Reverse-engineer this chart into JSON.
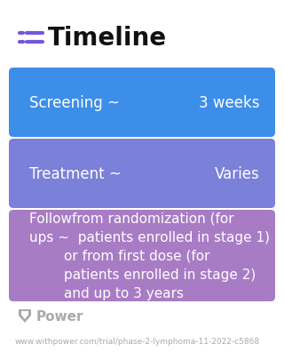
{
  "title": "Timeline",
  "background_color": "#ffffff",
  "title_color": "#111111",
  "title_fontsize": 20,
  "icon_color": "#7755DD",
  "rows": [
    {
      "left_text": "Screening ~",
      "right_text": "3 weeks",
      "bg_color": "#3D8EE8",
      "text_color": "#ffffff",
      "fontsize": 12
    },
    {
      "left_text": "Treatment ~",
      "right_text": "Varies",
      "bg_color": "#7B80D8",
      "text_color": "#ffffff",
      "fontsize": 12
    },
    {
      "left_text": "Followfrom randomization (for\nups ~  patients enrolled in stage 1)\n        or from first dose (for\n        patients enrolled in stage 2)\n        and up to 3 years",
      "right_text": "",
      "bg_color": "#A87CC5",
      "text_color": "#ffffff",
      "fontsize": 11
    }
  ],
  "footer_logo_text": "Power",
  "footer_url": "www.withpower.com/trial/phase-2-lymphoma-11-2022-c5868",
  "footer_color": "#aaaaaa",
  "footer_fontsize": 6.5
}
